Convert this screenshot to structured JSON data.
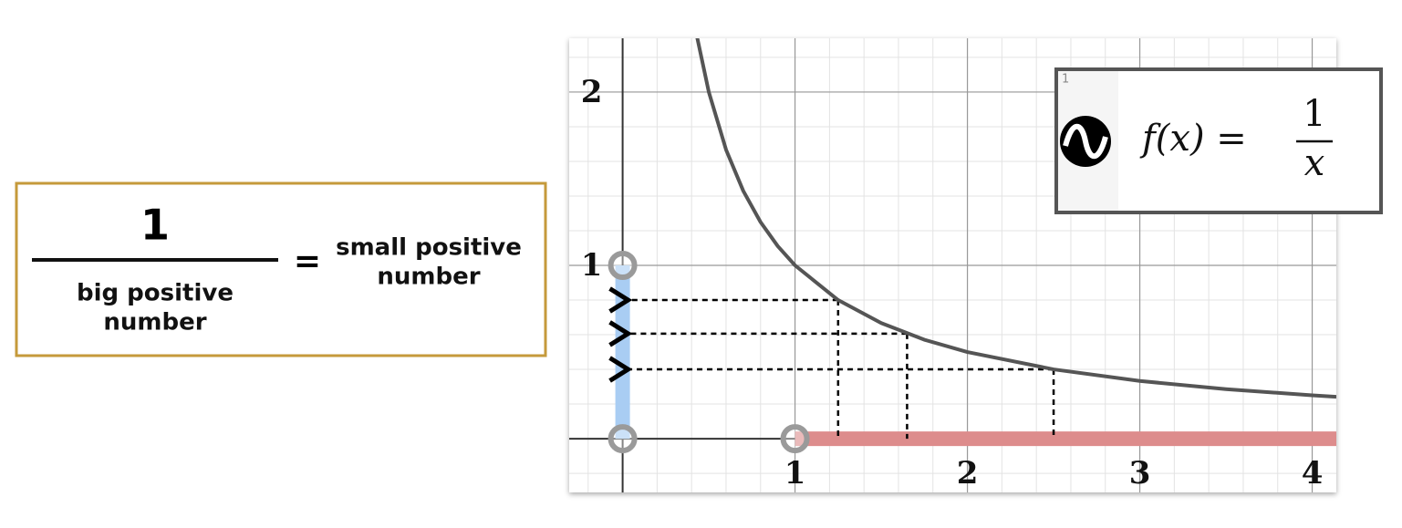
{
  "chart_data": {
    "type": "line",
    "x": [
      0.43,
      0.5,
      0.6,
      0.7,
      0.8,
      0.9,
      1,
      1.25,
      1.5,
      1.75,
      2,
      2.5,
      3,
      3.5,
      4,
      4.14
    ],
    "values": [
      2.326,
      2,
      1.667,
      1.429,
      1.25,
      1.111,
      1,
      0.8,
      0.667,
      0.571,
      0.5,
      0.4,
      0.333,
      0.286,
      0.25,
      0.242
    ],
    "color": "#555555",
    "xlim": [
      -0.31,
      4.14
    ],
    "ylim": [
      -0.31,
      2.31
    ],
    "xticks": [
      1,
      2,
      3,
      4
    ],
    "yticks": [
      1,
      2
    ],
    "grid": true,
    "minor_grid_step": 0.2,
    "guides": [
      {
        "x": 1.25,
        "y": 0.8
      },
      {
        "x": 1.65,
        "y": 0.606
      },
      {
        "x": 2.5,
        "y": 0.4
      }
    ],
    "highlights": [
      {
        "axis": "y",
        "from": 0,
        "to": 1,
        "color": "#a9cdf3"
      },
      {
        "axis": "x",
        "from": 1,
        "to": 4.14,
        "color": "#dd8c8c"
      }
    ],
    "legend": {
      "index": "1",
      "lhs": "f(x) =",
      "numerator": "1",
      "denominator": "x"
    },
    "note": {
      "numerator": "1",
      "denominator": [
        "big positive",
        "number"
      ],
      "equals": "=",
      "result": [
        "small positive",
        "number"
      ]
    }
  }
}
